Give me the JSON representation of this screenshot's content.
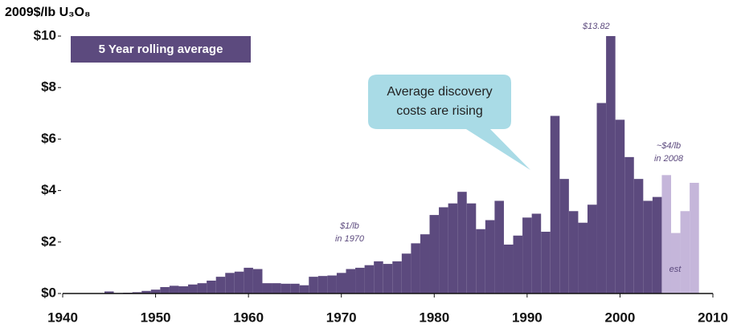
{
  "chart_data": {
    "type": "bar",
    "y_axis_label": "2009$/lb U₃O₈",
    "xlim": [
      1940,
      2010
    ],
    "xticks": [
      1940,
      1950,
      1960,
      1970,
      1980,
      1990,
      2000,
      2010
    ],
    "ylim": [
      0,
      10
    ],
    "yticks": [
      {
        "value": 0,
        "label": "$0"
      },
      {
        "value": 2,
        "label": "$2"
      },
      {
        "value": 4,
        "label": "$4"
      },
      {
        "value": 6,
        "label": "$6"
      },
      {
        "value": 8,
        "label": "$8"
      },
      {
        "value": 10,
        "label": "$10"
      }
    ],
    "series": [
      {
        "name": "5 Year rolling average",
        "color": "#5c4a7e",
        "x": [
          1945,
          1946,
          1947,
          1948,
          1949,
          1950,
          1951,
          1952,
          1953,
          1954,
          1955,
          1956,
          1957,
          1958,
          1959,
          1960,
          1961,
          1962,
          1963,
          1964,
          1965,
          1966,
          1967,
          1968,
          1969,
          1970,
          1971,
          1972,
          1973,
          1974,
          1975,
          1976,
          1977,
          1978,
          1979,
          1980,
          1981,
          1982,
          1983,
          1984,
          1985,
          1986,
          1987,
          1988,
          1989,
          1990,
          1991,
          1992,
          1993,
          1994,
          1995,
          1996,
          1997,
          1998,
          1999,
          2000,
          2001,
          2002,
          2003,
          2004
        ],
        "values": [
          0.08,
          0.02,
          0.03,
          0.05,
          0.1,
          0.15,
          0.25,
          0.3,
          0.28,
          0.35,
          0.4,
          0.5,
          0.65,
          0.8,
          0.85,
          1.0,
          0.95,
          0.4,
          0.4,
          0.38,
          0.38,
          0.32,
          0.65,
          0.68,
          0.7,
          0.8,
          0.95,
          1.0,
          1.1,
          1.25,
          1.15,
          1.25,
          1.55,
          1.95,
          2.3,
          3.05,
          3.35,
          3.5,
          3.95,
          3.5,
          2.5,
          2.85,
          3.6,
          1.9,
          2.25,
          2.95,
          3.1,
          2.4,
          6.9,
          4.45,
          3.2,
          2.75,
          3.45,
          7.4,
          13.82,
          6.75,
          5.3,
          4.45,
          3.6,
          3.75
        ],
        "value_labels": [
          null,
          null,
          null,
          null,
          null,
          null,
          null,
          null,
          null,
          null,
          null,
          null,
          null,
          null,
          null,
          null,
          null,
          null,
          null,
          null,
          null,
          null,
          null,
          null,
          null,
          null,
          null,
          null,
          null,
          null,
          null,
          null,
          null,
          null,
          null,
          null,
          null,
          null,
          null,
          null,
          null,
          null,
          null,
          null,
          null,
          null,
          null,
          null,
          null,
          null,
          null,
          null,
          null,
          null,
          "$13.82",
          null,
          null,
          null,
          null,
          null
        ]
      },
      {
        "name": "est",
        "color": "#c5b6da",
        "x": [
          2005,
          2006,
          2007,
          2008
        ],
        "values": [
          4.6,
          2.35,
          3.2,
          4.3
        ]
      }
    ],
    "annotations": [
      [
        "$1/lb",
        "in 1970"
      ],
      [
        "~$4/lb",
        "in 2008"
      ],
      [
        "Average discovery",
        "costs are rising"
      ]
    ]
  }
}
